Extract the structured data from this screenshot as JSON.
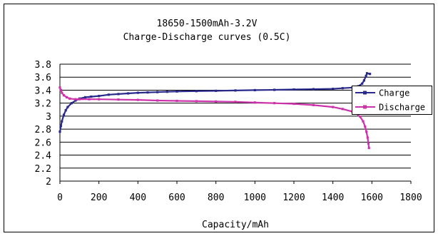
{
  "chart_data": {
    "type": "line",
    "title": "18650-1500mAh-3.2V",
    "subtitle": "Charge-Discharge curves (0.5C)",
    "xlabel": "Capacity/mAh",
    "ylabel": "",
    "xlim": [
      0,
      1800
    ],
    "ylim": [
      2,
      3.8
    ],
    "x_ticks": [
      "0",
      "200",
      "400",
      "600",
      "800",
      "1000",
      "1200",
      "1400",
      "1600",
      "1800"
    ],
    "y_ticks": [
      "2",
      "2.2",
      "2.4",
      "2.6",
      "2.8",
      "3",
      "3.2",
      "3.4",
      "3.6",
      "3.8"
    ],
    "grid": "horizontal",
    "legend_position": "right",
    "series": [
      {
        "name": "Charge",
        "color": "#2a2a8c",
        "marker": "square",
        "points": [
          [
            0,
            2.76
          ],
          [
            5,
            2.85
          ],
          [
            10,
            2.92
          ],
          [
            20,
            3.02
          ],
          [
            30,
            3.09
          ],
          [
            40,
            3.14
          ],
          [
            60,
            3.2
          ],
          [
            80,
            3.24
          ],
          [
            100,
            3.27
          ],
          [
            130,
            3.29
          ],
          [
            160,
            3.3
          ],
          [
            200,
            3.31
          ],
          [
            250,
            3.33
          ],
          [
            300,
            3.34
          ],
          [
            350,
            3.35
          ],
          [
            400,
            3.36
          ],
          [
            450,
            3.365
          ],
          [
            500,
            3.37
          ],
          [
            550,
            3.375
          ],
          [
            600,
            3.38
          ],
          [
            700,
            3.385
          ],
          [
            800,
            3.39
          ],
          [
            900,
            3.395
          ],
          [
            1000,
            3.4
          ],
          [
            1100,
            3.405
          ],
          [
            1200,
            3.41
          ],
          [
            1300,
            3.415
          ],
          [
            1400,
            3.42
          ],
          [
            1450,
            3.43
          ],
          [
            1500,
            3.44
          ],
          [
            1530,
            3.46
          ],
          [
            1550,
            3.5
          ],
          [
            1560,
            3.55
          ],
          [
            1570,
            3.62
          ],
          [
            1575,
            3.66
          ],
          [
            1590,
            3.65
          ]
        ]
      },
      {
        "name": "Discharge",
        "color": "#cc33aa",
        "marker": "square",
        "points": [
          [
            0,
            3.44
          ],
          [
            5,
            3.4
          ],
          [
            10,
            3.36
          ],
          [
            20,
            3.32
          ],
          [
            35,
            3.29
          ],
          [
            50,
            3.27
          ],
          [
            80,
            3.26
          ],
          [
            100,
            3.26
          ],
          [
            150,
            3.26
          ],
          [
            200,
            3.26
          ],
          [
            300,
            3.255
          ],
          [
            400,
            3.25
          ],
          [
            500,
            3.24
          ],
          [
            600,
            3.235
          ],
          [
            700,
            3.23
          ],
          [
            800,
            3.225
          ],
          [
            900,
            3.22
          ],
          [
            1000,
            3.21
          ],
          [
            1100,
            3.2
          ],
          [
            1200,
            3.19
          ],
          [
            1300,
            3.17
          ],
          [
            1400,
            3.14
          ],
          [
            1450,
            3.11
          ],
          [
            1500,
            3.07
          ],
          [
            1520,
            3.04
          ],
          [
            1540,
            2.99
          ],
          [
            1555,
            2.92
          ],
          [
            1565,
            2.84
          ],
          [
            1572,
            2.76
          ],
          [
            1578,
            2.67
          ],
          [
            1582,
            2.58
          ],
          [
            1585,
            2.51
          ]
        ]
      }
    ]
  }
}
